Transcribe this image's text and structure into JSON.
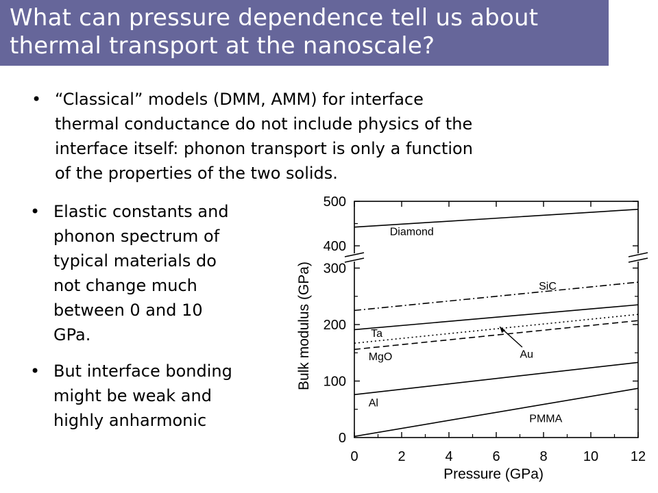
{
  "title": {
    "lines": [
      "What can pressure dependence tell us about",
      "thermal transport at the nanoscale?"
    ]
  },
  "bullets": [
    {
      "marker": "•",
      "lines": [
        "“Classical” models  (DMM, AMM) for interface",
        "thermal conductance do not include physics of the",
        "interface itself: phonon transport is only a function",
        "of the properties of the two solids."
      ]
    },
    {
      "marker": "•",
      "lines": [
        "Elastic constants and",
        "phonon spectrum of",
        "typical materials do",
        "not change much",
        "between 0 and 10",
        "GPa."
      ]
    },
    {
      "marker": "•",
      "lines": [
        "But interface bonding",
        "might be weak and",
        "highly anharmonic"
      ]
    }
  ],
  "chart_data": {
    "type": "line",
    "xlabel": "Pressure (GPa)",
    "ylabel": "Bulk modulus (GPa)",
    "xlim": [
      0,
      12
    ],
    "x_ticks": [
      "0",
      "2",
      "4",
      "6",
      "8",
      "10",
      "12"
    ],
    "y_ticks_lower": [
      "0",
      "100",
      "200",
      "300"
    ],
    "y_ticks_upper": [
      "400",
      "500"
    ],
    "y_axis_break": "between 300 and 400",
    "series": [
      {
        "name": "Diamond",
        "style": "solid",
        "x": [
          0,
          12
        ],
        "y": [
          442,
          482
        ]
      },
      {
        "name": "SiC",
        "style": "dashdot",
        "x": [
          0,
          12
        ],
        "y": [
          225,
          275
        ]
      },
      {
        "name": "Ta",
        "style": "solid",
        "x": [
          0,
          12
        ],
        "y": [
          191,
          235
        ]
      },
      {
        "name": "Au",
        "style": "dotted",
        "x": [
          0,
          12
        ],
        "y": [
          167,
          218
        ]
      },
      {
        "name": "MgO",
        "style": "dashed",
        "x": [
          0,
          12
        ],
        "y": [
          156,
          207
        ]
      },
      {
        "name": "Al",
        "style": "solid",
        "x": [
          0,
          12
        ],
        "y": [
          76,
          133
        ]
      },
      {
        "name": "PMMA",
        "style": "solid",
        "x": [
          0,
          12
        ],
        "y": [
          2,
          87
        ]
      }
    ]
  }
}
